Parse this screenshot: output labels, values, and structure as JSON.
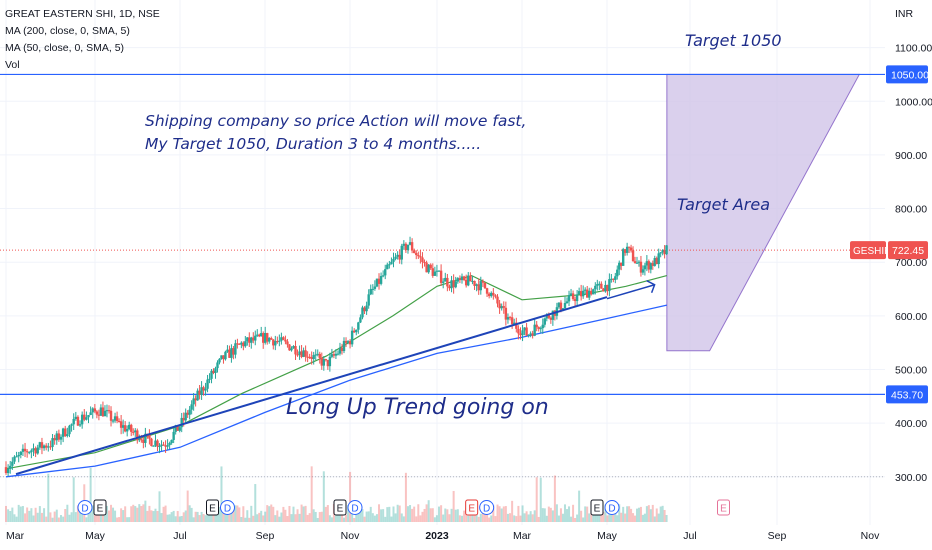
{
  "header": {
    "symbol_line": "GREAT EASTERN SHI, 1D, NSE",
    "ma_200": "MA (200, close, 0, SMA, 5)",
    "ma_50": "MA (50, close, 0, SMA, 5)",
    "vol": "Vol"
  },
  "currency": "INR",
  "colors": {
    "up": "#26a69a",
    "down": "#ef5350",
    "ma200": "#2962ff",
    "ma50": "#43a047",
    "annotation": "#1e2d8a",
    "hline": "#2962ff",
    "target_fill": "#d1c4e9",
    "target_stroke": "#9575cd",
    "price_badge": "#ef5350"
  },
  "annotations": {
    "target_top": "Target 1050",
    "note_line1": "Shipping company so price Action will move fast,",
    "note_line2": "My Target 1050, Duration 3 to 4 months.....",
    "target_area": "Target Area",
    "trend_text": "Long Up Trend going on"
  },
  "price_labels": {
    "upper_level": "1050.00",
    "lower_level": "453.70",
    "ticker": "GESHIP",
    "last_price": "722.45"
  },
  "chart_data": {
    "type": "candlestick",
    "symbol": "GREAT EASTERN SHI",
    "interval": "1D",
    "exchange": "NSE",
    "y_ticks": [
      "1100.00",
      "1000.00",
      "900.00",
      "800.00",
      "700.00",
      "600.00",
      "500.00",
      "400.00",
      "300.00"
    ],
    "x_ticks": [
      "Mar",
      "May",
      "Jul",
      "Sep",
      "Nov",
      "2023",
      "Mar",
      "May",
      "Jul",
      "Sep",
      "Nov"
    ],
    "ylim": [
      295,
      1150
    ],
    "close_path": [
      [
        "2022-03-01",
        318
      ],
      [
        "2022-03-15",
        348
      ],
      [
        "2022-04-01",
        362
      ],
      [
        "2022-04-20",
        408
      ],
      [
        "2022-05-05",
        425
      ],
      [
        "2022-05-20",
        395
      ],
      [
        "2022-06-05",
        372
      ],
      [
        "2022-06-20",
        360
      ],
      [
        "2022-07-01",
        395
      ],
      [
        "2022-07-15",
        455
      ],
      [
        "2022-08-01",
        520
      ],
      [
        "2022-08-15",
        548
      ],
      [
        "2022-09-01",
        560
      ],
      [
        "2022-09-15",
        548
      ],
      [
        "2022-10-01",
        530
      ],
      [
        "2022-10-15",
        510
      ],
      [
        "2022-11-01",
        555
      ],
      [
        "2022-11-15",
        640
      ],
      [
        "2022-12-01",
        700
      ],
      [
        "2022-12-12",
        735
      ],
      [
        "2022-12-25",
        690
      ],
      [
        "2023-01-10",
        660
      ],
      [
        "2023-01-25",
        665
      ],
      [
        "2023-02-05",
        650
      ],
      [
        "2023-02-20",
        590
      ],
      [
        "2023-03-05",
        565
      ],
      [
        "2023-03-20",
        600
      ],
      [
        "2023-04-05",
        632
      ],
      [
        "2023-04-20",
        648
      ],
      [
        "2023-05-05",
        660
      ],
      [
        "2023-05-15",
        728
      ],
      [
        "2023-05-25",
        690
      ],
      [
        "2023-06-05",
        700
      ],
      [
        "2023-06-14",
        722
      ]
    ],
    "ma_200": [
      [
        "2022-03-01",
        300
      ],
      [
        "2022-05-01",
        320
      ],
      [
        "2022-07-01",
        355
      ],
      [
        "2022-09-01",
        420
      ],
      [
        "2022-11-01",
        480
      ],
      [
        "2023-01-01",
        530
      ],
      [
        "2023-03-01",
        560
      ],
      [
        "2023-05-01",
        595
      ],
      [
        "2023-06-14",
        620
      ]
    ],
    "ma_50": [
      [
        "2022-03-01",
        315
      ],
      [
        "2022-05-01",
        345
      ],
      [
        "2022-07-01",
        395
      ],
      [
        "2022-08-15",
        455
      ],
      [
        "2022-10-15",
        525
      ],
      [
        "2022-12-01",
        600
      ],
      [
        "2023-01-01",
        655
      ],
      [
        "2023-01-25",
        675
      ],
      [
        "2023-03-01",
        630
      ],
      [
        "2023-04-15",
        640
      ],
      [
        "2023-05-15",
        655
      ],
      [
        "2023-06-14",
        675
      ]
    ],
    "volume_markers": [
      {
        "date": "2022-05-01",
        "labels": [
          "D",
          "E"
        ]
      },
      {
        "date": "2022-08-01",
        "labels": [
          "E",
          "D"
        ]
      },
      {
        "date": "2022-11-01",
        "labels": [
          "E",
          "D"
        ]
      },
      {
        "date": "2023-02-01",
        "labels": [
          "E",
          "D"
        ]
      },
      {
        "date": "2023-05-01",
        "labels": [
          "E",
          "D"
        ]
      },
      {
        "date": "2023-08-01",
        "labels": [
          "E"
        ]
      }
    ],
    "horizontal_levels": [
      1050,
      453.7
    ],
    "last_price": 722.45
  }
}
